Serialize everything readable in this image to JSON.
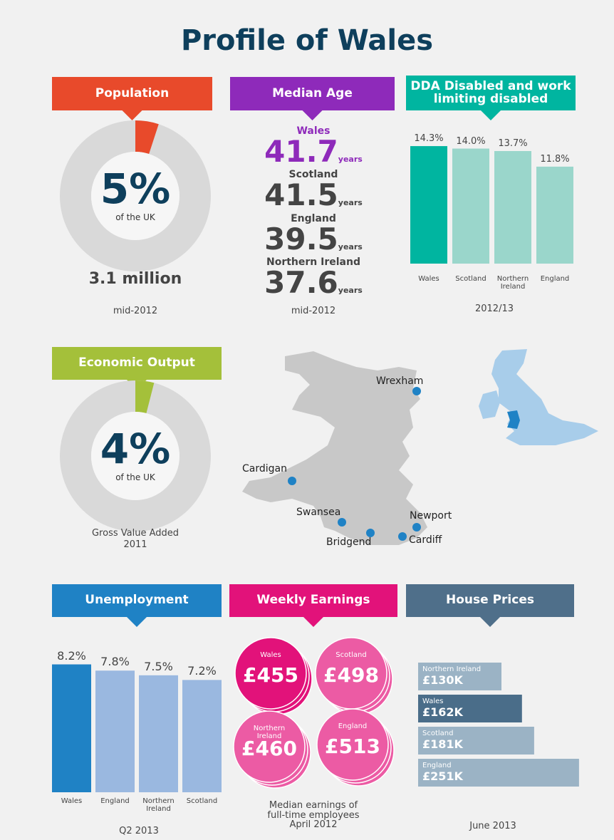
{
  "title": "Profile of Wales",
  "population": {
    "header": "Population",
    "color": "#e84a2b",
    "value": 5,
    "value_label": "5%",
    "caption": "of the UK",
    "total": "3.1 million",
    "period": "mid-2012"
  },
  "median_age": {
    "header": "Median Age",
    "color": "#8e2aba",
    "unit": "years",
    "items": [
      {
        "name": "Wales",
        "value": 41.7
      },
      {
        "name": "Scotland",
        "value": 41.5
      },
      {
        "name": "England",
        "value": 39.5
      },
      {
        "name": "Northern Ireland",
        "value": 37.6
      }
    ],
    "period": "mid-2012"
  },
  "disabled": {
    "type": "bar",
    "header": "DDA Disabled and work limiting disabled",
    "color": "#00b5a0",
    "categories": [
      "Wales",
      "Scotland",
      "Northern Ireland",
      "England"
    ],
    "values": [
      14.3,
      14.0,
      13.7,
      11.8
    ],
    "value_labels": [
      "14.3%",
      "14.0%",
      "13.7%",
      "11.8%"
    ],
    "colors": [
      "#00b5a0",
      "#9ad6cb",
      "#9ad6cb",
      "#9ad6cb"
    ],
    "ylim": [
      0,
      15
    ],
    "period": "2012/13"
  },
  "economic_output": {
    "header": "Economic Output",
    "color": "#a4c03a",
    "value": 4,
    "value_label": "4%",
    "caption": "of the UK",
    "note": "Gross Value Added",
    "period": "2011"
  },
  "map": {
    "cities": [
      "Wrexham",
      "Cardigan",
      "Swansea",
      "Newport",
      "Bridgend",
      "Cardiff"
    ]
  },
  "unemployment": {
    "type": "bar",
    "header": "Unemployment",
    "color": "#1f82c5",
    "categories": [
      "Wales",
      "England",
      "Northern Ireland",
      "Scotland"
    ],
    "values": [
      8.2,
      7.8,
      7.5,
      7.2
    ],
    "value_labels": [
      "8.2%",
      "7.8%",
      "7.5%",
      "7.2%"
    ],
    "colors": [
      "#1f82c5",
      "#9ab8e0",
      "#9ab8e0",
      "#9ab8e0"
    ],
    "ylim": [
      0,
      9
    ],
    "period": "Q2 2013"
  },
  "earnings": {
    "header": "Weekly Earnings",
    "color": "#e2127a",
    "items": [
      {
        "name": "Wales",
        "value": 455,
        "value_label": "£455",
        "color": "#e2127a"
      },
      {
        "name": "Scotland",
        "value": 498,
        "value_label": "£498",
        "color": "#ec5ba4"
      },
      {
        "name": "Northern Ireland",
        "value": 460,
        "value_label": "£460",
        "color": "#ec5ba4"
      },
      {
        "name": "England",
        "value": 513,
        "value_label": "£513",
        "color": "#ec5ba4"
      }
    ],
    "caption": "Median earnings of full-time employees April 2012"
  },
  "house_prices": {
    "type": "hbar",
    "header": "House Prices",
    "color": "#4f6f8a",
    "categories": [
      "Northern Ireland",
      "Wales",
      "Scotland",
      "England"
    ],
    "values": [
      130000,
      162000,
      181000,
      251000
    ],
    "value_labels": [
      "£130K",
      "£162K",
      "£181K",
      "£251K"
    ],
    "colors": [
      "#9bb3c5",
      "#4a6d89",
      "#9bb3c5",
      "#9bb3c5"
    ],
    "xlim": [
      0,
      260000
    ],
    "period": "June 2013"
  }
}
